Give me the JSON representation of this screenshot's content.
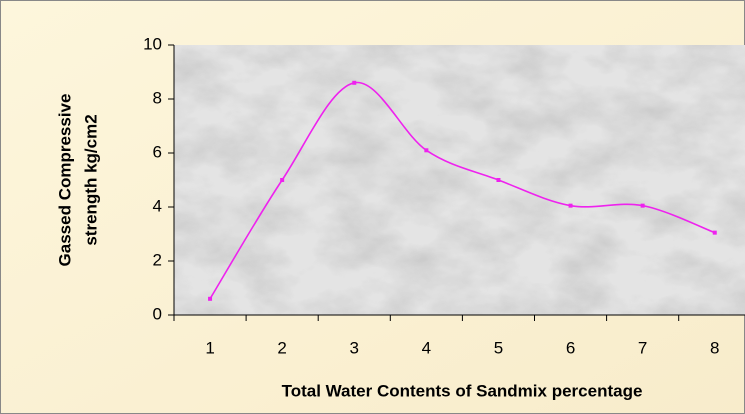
{
  "chart_data": {
    "type": "line",
    "x_label": "Total Water Contents of Sandmix percentage",
    "y_label": [
      "Gassed Compressive",
      "strength kg/cm2"
    ],
    "categories": [
      "1",
      "2",
      "3",
      "4",
      "5",
      "6",
      "7",
      "8"
    ],
    "series": [
      {
        "name": "Gassed Compressive strength",
        "color": "#ee22ee",
        "values": [
          0.6,
          5,
          8.6,
          6.1,
          5,
          4.05,
          4.05,
          3.05
        ]
      }
    ],
    "ylim": [
      0,
      10
    ],
    "yticks": [
      0,
      2,
      4,
      6,
      8,
      10
    ],
    "grid": false,
    "smooth": true
  }
}
